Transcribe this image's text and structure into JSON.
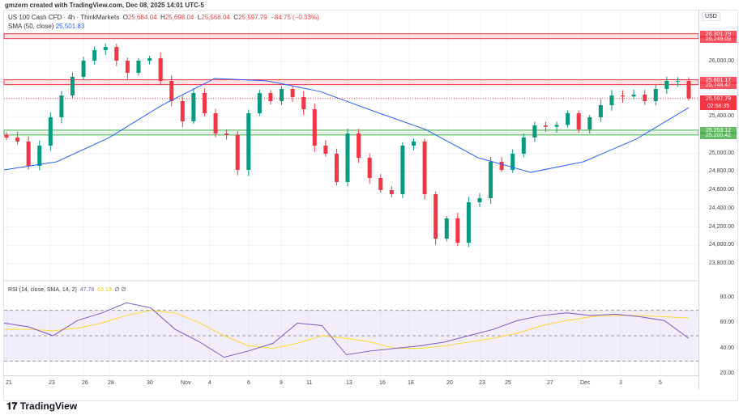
{
  "credit": "gmzern created with TradingView.com, Dec 08, 2025 14:01 UTC-5",
  "legend": {
    "symbol": "US 100 Cash CFD · 4h · ThinkMarkets",
    "o_label": "O",
    "o": "25,684.04",
    "h_label": "H",
    "h": "25,698.04",
    "l_label": "L",
    "l": "25,568.04",
    "c_label": "C",
    "c": "25,597.79",
    "change": "−84.75 (−0.33%)",
    "sma_label": "SMA (50, close)",
    "sma_value": "25,501.83"
  },
  "rsi": {
    "label": "RSI (14, close, SMA, 14, 2)",
    "value": "47.78",
    "ma_value": "63.13",
    "extra1": "∅",
    "extra2": "∅",
    "ticks": [
      "80.00",
      "60.00",
      "40.00",
      "20.00"
    ],
    "bands": [
      70,
      50,
      30
    ]
  },
  "price_axis": {
    "currency": "USD",
    "ticks": [
      "26,000.00",
      "25,400.00",
      "25,000.00",
      "24,800.00",
      "24,600.00",
      "24,400.00",
      "24,200.00",
      "24,000.00",
      "23,800.00"
    ],
    "tick_values": [
      26000,
      25400,
      25000,
      24800,
      24600,
      24400,
      24200,
      24000,
      23800
    ]
  },
  "zones": [
    {
      "top": "26,301.79",
      "bottom": "26,249.09",
      "top_v": 26301.79,
      "bottom_v": 26249.09,
      "color": "#f23645"
    },
    {
      "top": "25,801.17",
      "bottom": "25,748.47",
      "top_v": 25801.17,
      "bottom_v": 25748.47,
      "color": "#f23645"
    },
    {
      "top": "25,253.12",
      "bottom": "25,200.42",
      "top_v": 25253.12,
      "bottom_v": 25200.42,
      "color": "#4caf50"
    }
  ],
  "last_price": {
    "value": "25,597.79",
    "v": 25597.79,
    "countdown": "02:58:35"
  },
  "x_labels": [
    "21",
    "23",
    "26",
    "28",
    "30",
    "Nov",
    "4",
    "6",
    "9",
    "11",
    "13",
    "16",
    "18",
    "20",
    "23",
    "25",
    "27",
    "Dec",
    "3",
    "5"
  ],
  "closes": [
    25173,
    25129,
    24865,
    25085,
    25393,
    25630,
    25833,
    26009,
    26123,
    26158,
    26009,
    25877,
    26009,
    26035,
    25789,
    25569,
    25349,
    25657,
    25437,
    25217,
    25200,
    24821,
    25437,
    25657,
    25569,
    25701,
    25613,
    25481,
    25085,
    24997,
    24689,
    25217,
    24953,
    24733,
    24601,
    24557,
    25085,
    25129,
    24557,
    24073,
    24293,
    24029,
    24469,
    24513,
    24909,
    24821,
    24997,
    25173,
    25305,
    25290,
    25310,
    25437,
    25261,
    25393,
    25525,
    25630,
    25620,
    25640,
    25569,
    25701,
    25789,
    25789,
    25598
  ],
  "sma": [
    24821,
    24909,
    25173,
    25525,
    25815,
    25789,
    25674,
    25463,
    25261,
    24953,
    24794,
    24909,
    25155,
    25498
  ],
  "rsi_series": [
    60,
    57,
    50,
    62,
    68,
    76,
    72,
    55,
    45,
    33,
    38,
    44,
    60,
    58,
    35,
    38,
    40,
    42,
    45,
    50,
    55,
    62,
    66,
    68,
    66,
    67,
    65,
    62,
    48
  ],
  "rsi_ma": [
    55,
    55,
    54,
    56,
    60,
    66,
    70,
    68,
    60,
    50,
    42,
    40,
    44,
    50,
    48,
    45,
    40,
    40,
    42,
    45,
    48,
    52,
    58,
    62,
    65,
    66,
    66,
    65,
    64
  ],
  "colors": {
    "up": "#089981",
    "down": "#f23645",
    "sma": "#2962ff",
    "rsi": "#7e57c2",
    "rsi_ma": "#fdd835"
  },
  "brand": "TradingView"
}
